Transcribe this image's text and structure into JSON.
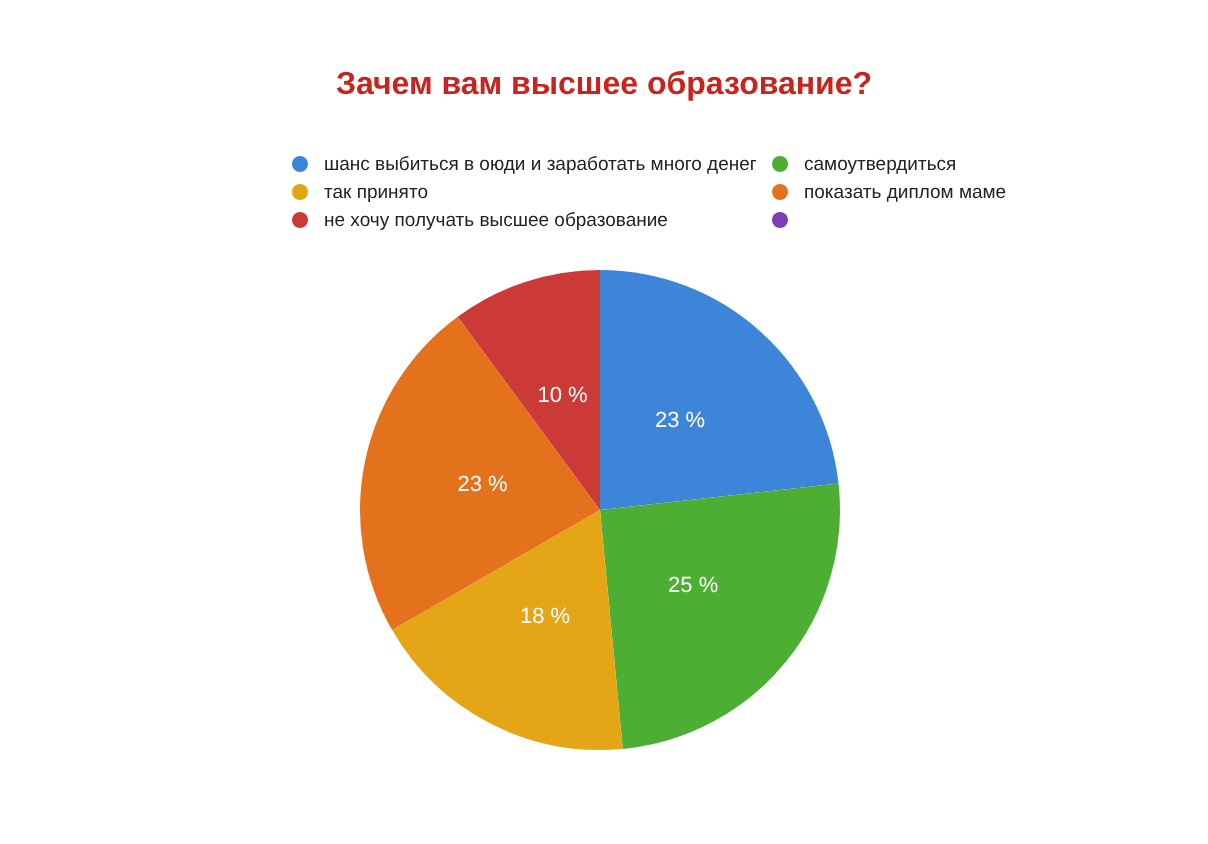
{
  "chart_data": {
    "type": "pie",
    "title": "Зачем вам высшее образование?",
    "categories": [
      "шанс выбиться в оюди и заработать много денег",
      "самоутвердиться",
      "так принято",
      "показать диплом маме",
      "не хочу получать высшее образование",
      null
    ],
    "values": [
      23,
      25,
      18,
      23,
      10,
      0
    ],
    "value_labels": [
      "23 %",
      "25 %",
      "18 %",
      "23 %",
      "10 %",
      null
    ],
    "colors": [
      "#3d85d8",
      "#4cae32",
      "#e4a517",
      "#e4721d",
      "#cc3a38",
      "#7b3fb5"
    ],
    "legend": "top"
  }
}
